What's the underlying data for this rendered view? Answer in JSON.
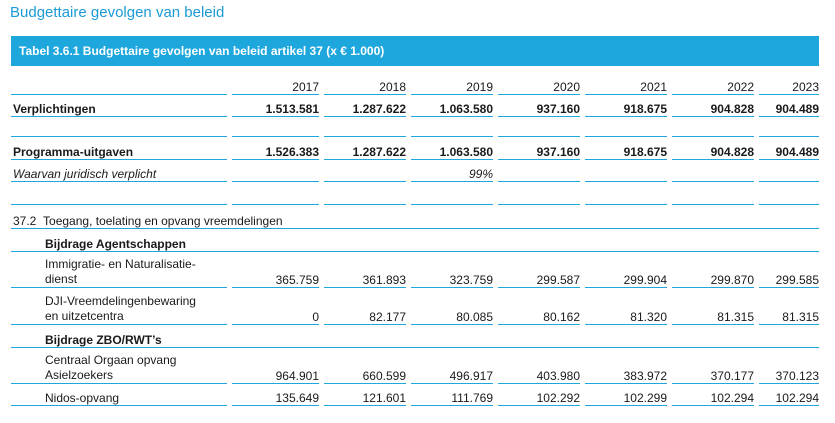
{
  "page_title": "Budgettaire gevolgen van beleid",
  "table_title": "Tabel 3.6.1 Budgettaire gevolgen van beleid artikel 37 (x € 1.000)",
  "years": [
    "2017",
    "2018",
    "2019",
    "2020",
    "2021",
    "2022",
    "2023"
  ],
  "verplichtingen": {
    "label": "Verplichtingen",
    "values": [
      "1.513.581",
      "1.287.622",
      "1.063.580",
      "937.160",
      "918.675",
      "904.828",
      "904.489"
    ]
  },
  "programma": {
    "label": "Programma-uitgaven",
    "values": [
      "1.526.383",
      "1.287.622",
      "1.063.580",
      "937.160",
      "918.675",
      "904.828",
      "904.489"
    ]
  },
  "juridisch": {
    "label": "Waarvan juridisch verplicht",
    "value_2019": "99%"
  },
  "section": {
    "code": "37.2",
    "label": "Toegang, toelating en opvang vreemdelingen"
  },
  "group1": "Bijdrage Agentschappen",
  "ind": {
    "line1": "Immigratie- en Naturalisatie-",
    "line2": "dienst",
    "values": [
      "365.759",
      "361.893",
      "323.759",
      "299.587",
      "299.904",
      "299.870",
      "299.585"
    ]
  },
  "dji": {
    "line1": "DJI-Vreemdelingenbewaring",
    "line2": "en uitzetcentra",
    "values": [
      "0",
      "82.177",
      "80.085",
      "80.162",
      "81.320",
      "81.315",
      "81.315"
    ]
  },
  "group2": "Bijdrage ZBO/RWT’s",
  "coa": {
    "line1": "Centraal Orgaan opvang",
    "line2": "Asielzoekers",
    "values": [
      "964.901",
      "660.599",
      "496.917",
      "403.980",
      "383.972",
      "370.177",
      "370.123"
    ]
  },
  "nidos": {
    "label": "Nidos-opvang",
    "values": [
      "135.649",
      "121.601",
      "111.769",
      "102.292",
      "102.299",
      "102.294",
      "102.294"
    ]
  }
}
